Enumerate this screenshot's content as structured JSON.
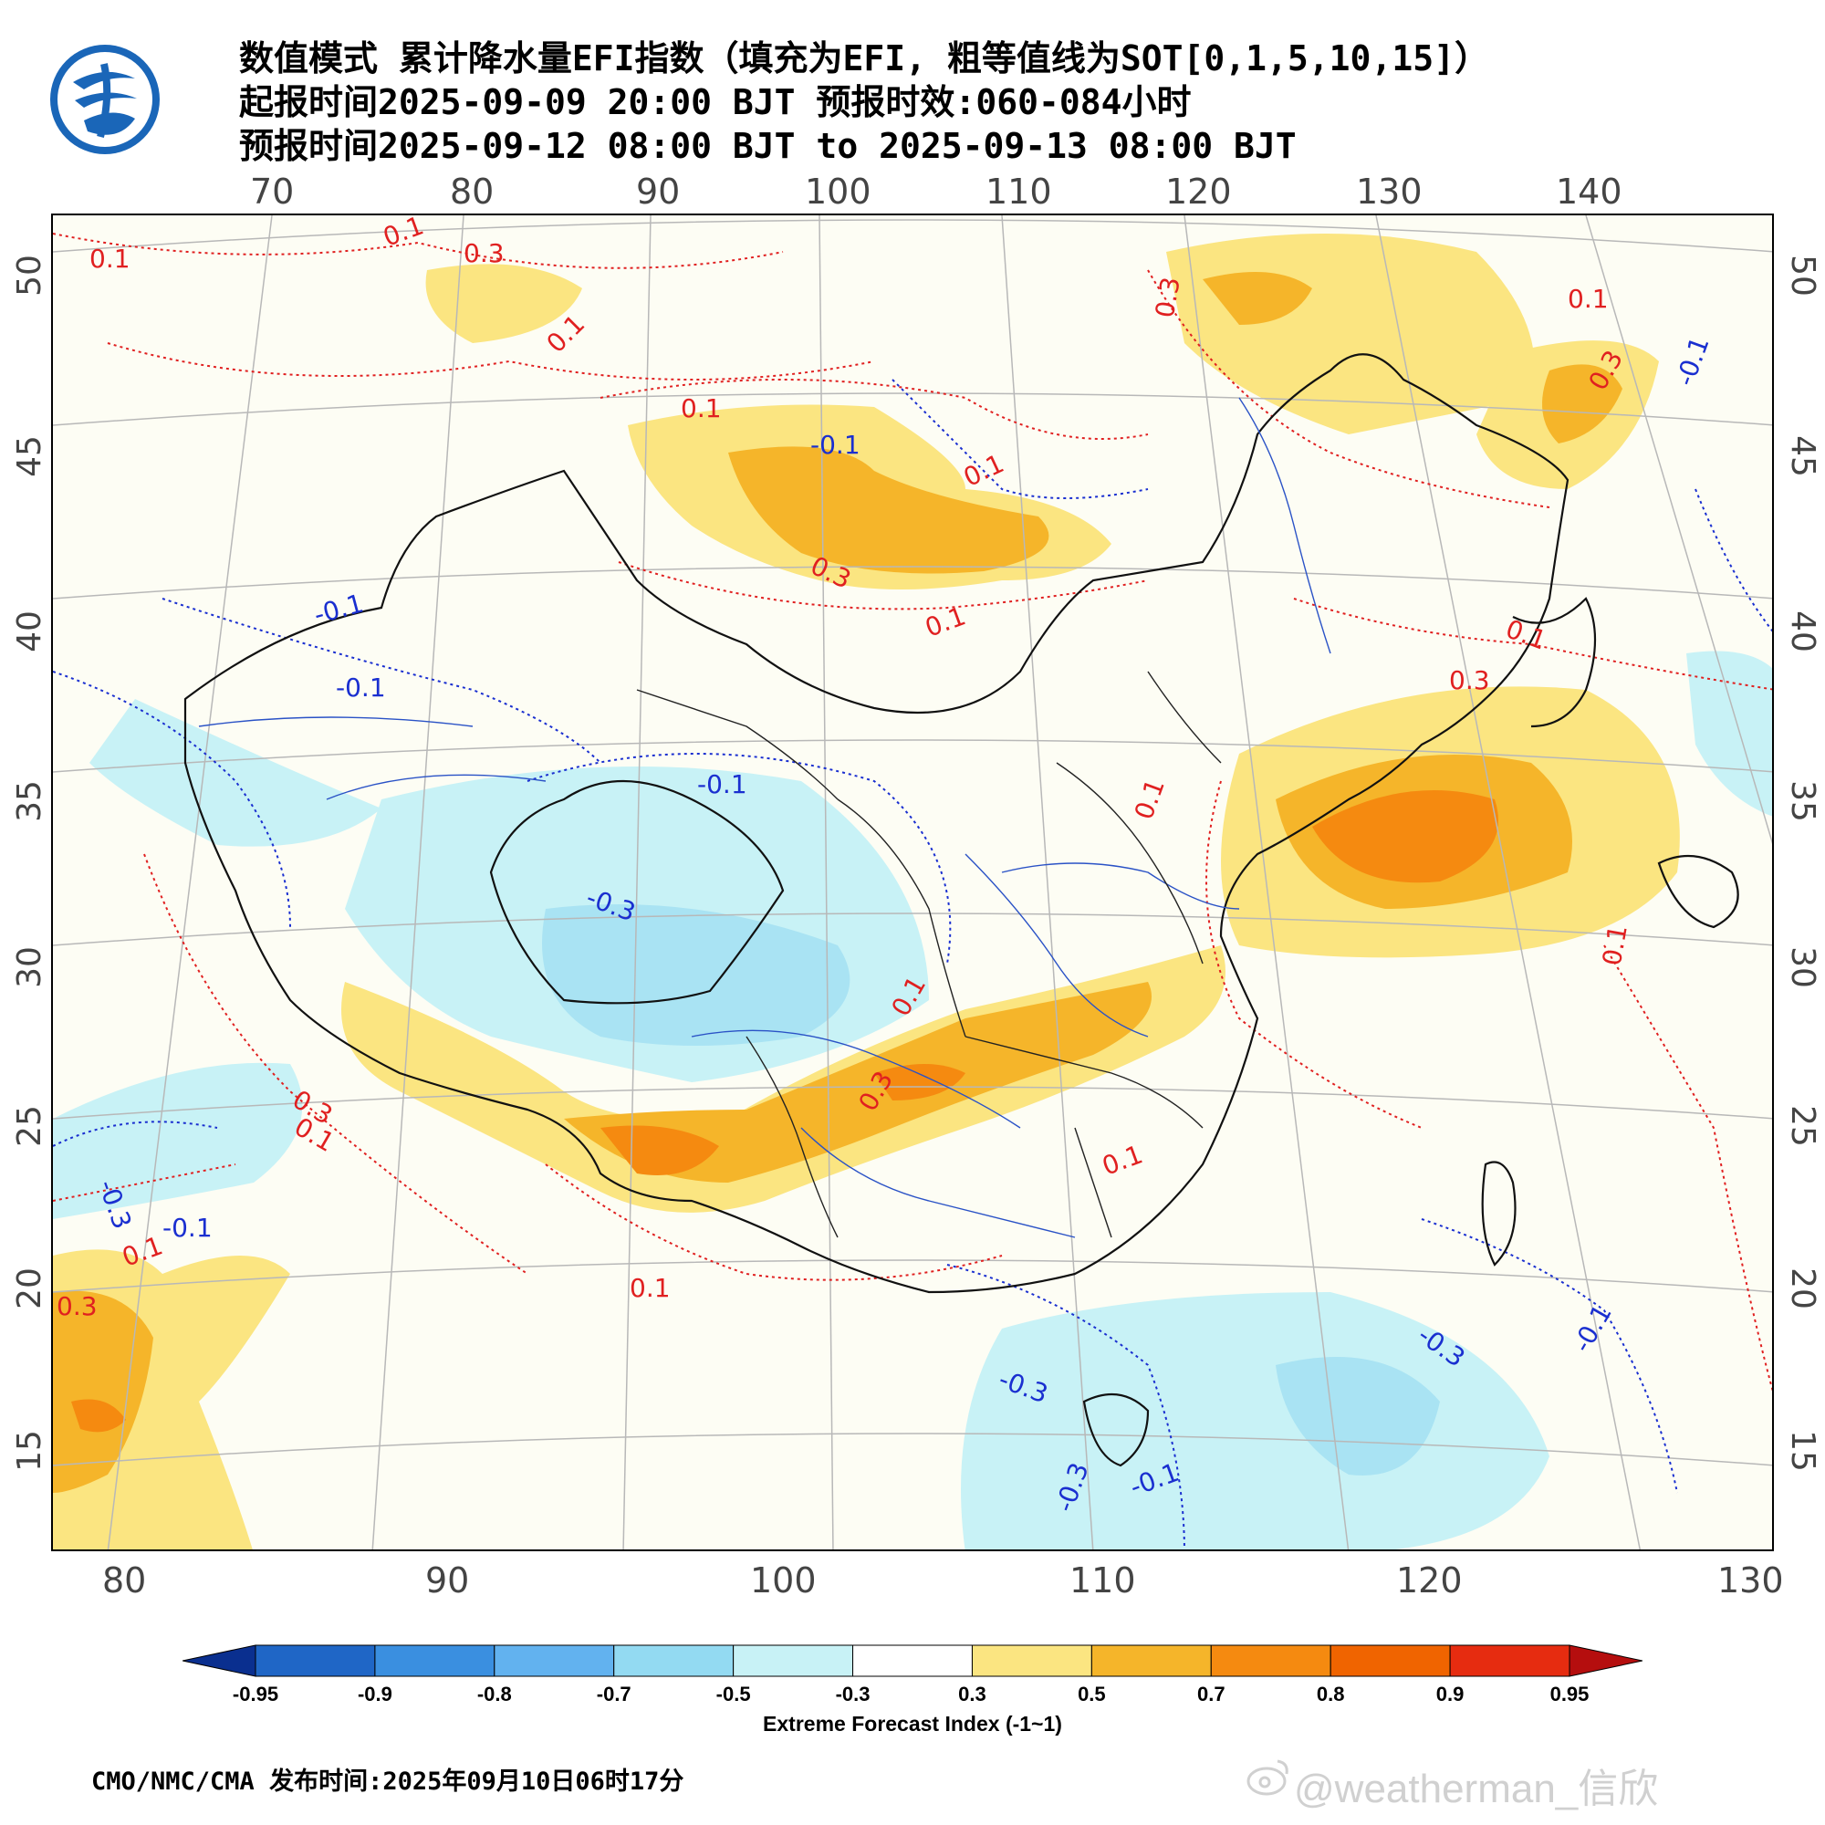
{
  "title": {
    "line1": "数值模式 累计降水量EFI指数（填充为EFI, 粗等值线为SOT[0,1,5,10,15]）",
    "line2": "起报时间2025-09-09 20:00 BJT 预报时效:060-084小时",
    "line3": "预报时间2025-09-12 08:00 BJT to 2025-09-13 08:00 BJT"
  },
  "axes": {
    "top_lon": [
      "70",
      "80",
      "90",
      "100",
      "110",
      "120",
      "130",
      "140"
    ],
    "bottom_lon": [
      "80",
      "90",
      "100",
      "110",
      "120",
      "130"
    ],
    "lat": [
      "50",
      "45",
      "40",
      "35",
      "30",
      "25",
      "20",
      "15"
    ]
  },
  "contour_labels": [
    {
      "text": "0.1",
      "color": "red"
    },
    {
      "text": "0.3",
      "color": "red"
    },
    {
      "text": "0.1",
      "color": "red"
    },
    {
      "text": "0.1",
      "color": "red"
    },
    {
      "text": "0.3",
      "color": "red"
    },
    {
      "text": "0.1",
      "color": "red"
    },
    {
      "text": "0.1",
      "color": "red"
    },
    {
      "text": "0.3",
      "color": "red"
    },
    {
      "text": "0.1",
      "color": "red"
    },
    {
      "text": "0.3",
      "color": "red"
    },
    {
      "text": "0.1",
      "color": "red"
    },
    {
      "text": "0.1",
      "color": "red"
    },
    {
      "text": "0.3",
      "color": "red"
    },
    {
      "text": "0.1",
      "color": "red"
    },
    {
      "text": "0.1",
      "color": "red"
    },
    {
      "text": "0.1",
      "color": "red"
    },
    {
      "text": "0.3",
      "color": "red"
    },
    {
      "text": "0.1",
      "color": "red"
    },
    {
      "text": "0.1",
      "color": "red"
    },
    {
      "text": "0.3",
      "color": "red"
    },
    {
      "text": "0.1",
      "color": "red"
    },
    {
      "text": "0.3",
      "color": "red"
    },
    {
      "text": "0.1",
      "color": "red"
    },
    {
      "text": "-0.1",
      "color": "blue"
    },
    {
      "text": "-0.1",
      "color": "blue"
    },
    {
      "text": "-0.1",
      "color": "blue"
    },
    {
      "text": "-0.1",
      "color": "blue"
    },
    {
      "text": "-0.3",
      "color": "blue"
    },
    {
      "text": "-0.1",
      "color": "blue"
    },
    {
      "text": "-0.3",
      "color": "blue"
    },
    {
      "text": "-0.1",
      "color": "blue"
    },
    {
      "text": "-0.3",
      "color": "blue"
    },
    {
      "text": "-0.3",
      "color": "blue"
    },
    {
      "text": "-0.1",
      "color": "blue"
    },
    {
      "text": "-0.3",
      "color": "blue"
    },
    {
      "text": "-0.1",
      "color": "blue"
    }
  ],
  "colorbar": {
    "labels": [
      "-0.95",
      "-0.9",
      "-0.8",
      "-0.7",
      "-0.5",
      "-0.3",
      "0.3",
      "0.5",
      "0.7",
      "0.8",
      "0.9",
      "0.95"
    ],
    "colors": [
      "#0a2f8f",
      "#1f66c6",
      "#3a8fe0",
      "#62b2ef",
      "#93daf2",
      "#c8f2f6",
      "#ffffff",
      "#fbe581",
      "#f5b52a",
      "#f58a10",
      "#f06400",
      "#e62c10",
      "#b50e0e"
    ],
    "title": "Extreme Forecast Index (-1~1)"
  },
  "footer": "CMO/NMC/CMA  发布时间:2025年09月10日06时17分",
  "watermark": "@weatherman_信欣"
}
